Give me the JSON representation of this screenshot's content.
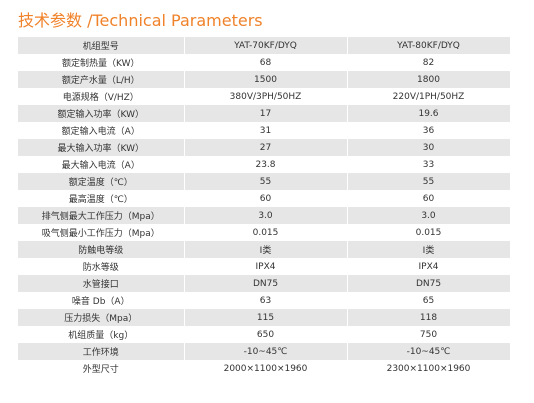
{
  "header": {
    "title": "技术参数 /Technical Parameters"
  },
  "table": {
    "rows": [
      [
        "机组型号",
        "YAT-70KF/DYQ",
        "YAT-80KF/DYQ"
      ],
      [
        "额定制热量（KW）",
        "68",
        "82"
      ],
      [
        "额定产水量（L/H）",
        "1500",
        "1800"
      ],
      [
        "电源规格（V/HZ）",
        "380V/3PH/50HZ",
        "220V/1PH/50HZ"
      ],
      [
        "额定输入功率（KW）",
        "17",
        "19.6"
      ],
      [
        "额定输入电流（A）",
        "31",
        "36"
      ],
      [
        "最大输入功率（KW）",
        "27",
        "30"
      ],
      [
        "最大输入电流（A）",
        "23.8",
        "33"
      ],
      [
        "额定温度（℃）",
        "55",
        "55"
      ],
      [
        "最高温度（℃）",
        "60",
        "60"
      ],
      [
        "排气侧最大工作压力（Mpa）",
        "3.0",
        "3.0"
      ],
      [
        "吸气侧最小工作压力（Mpa）",
        "0.015",
        "0.015"
      ],
      [
        "防触电等级",
        "Ⅰ类",
        "Ⅰ类"
      ],
      [
        "防水等级",
        "IPX4",
        "IPX4"
      ],
      [
        "水管接口",
        "DN75",
        "DN75"
      ],
      [
        "噪音 Db（A）",
        "63",
        "65"
      ],
      [
        "压力损失（Mpa）",
        "115",
        "118"
      ],
      [
        "机组质量（kg）",
        "650",
        "750"
      ],
      [
        "工作环境",
        "-10~45℃",
        "-10~45℃"
      ],
      [
        "外型尺寸",
        "2000×1100×1960",
        "2300×1100×1960"
      ]
    ]
  }
}
